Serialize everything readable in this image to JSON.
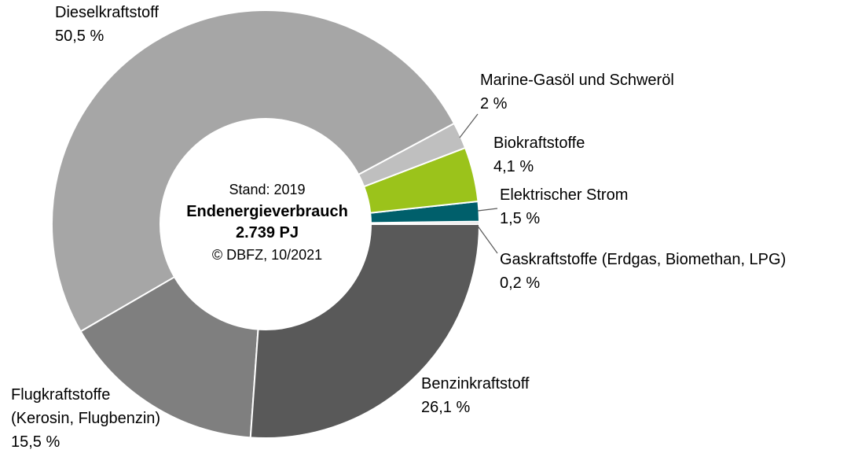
{
  "chart_data": {
    "type": "donut",
    "subtitle": "Stand: 2019",
    "title": "Endenergieverbrauch",
    "total": "2.739 PJ",
    "source": "© DBFZ, 10/2021",
    "categories": [
      "Benzinkraftstoff",
      "Flugkraftstoffe\n(Kerosin, Flugbenzin)",
      "Dieselkraftstoff",
      "Marine-Gasöl und Schweröl",
      "Biokraftstoffe",
      "Elektrischer Strom",
      "Gaskraftstoffe (Erdgas, Biomethan, LPG)"
    ],
    "values": [
      26.1,
      15.5,
      50.5,
      2,
      4.1,
      1.5,
      0.2
    ],
    "value_labels": [
      "26,1 %",
      "15,5 %",
      "50,5 %",
      "2 %",
      "4,1 %",
      "1,5 %",
      "0,2 %"
    ],
    "colors": [
      "#595959",
      "#7f7f7f",
      "#a6a6a6",
      "#bfbfbf",
      "#9bc31b",
      "#005f6b",
      "#d9d9d9"
    ]
  }
}
